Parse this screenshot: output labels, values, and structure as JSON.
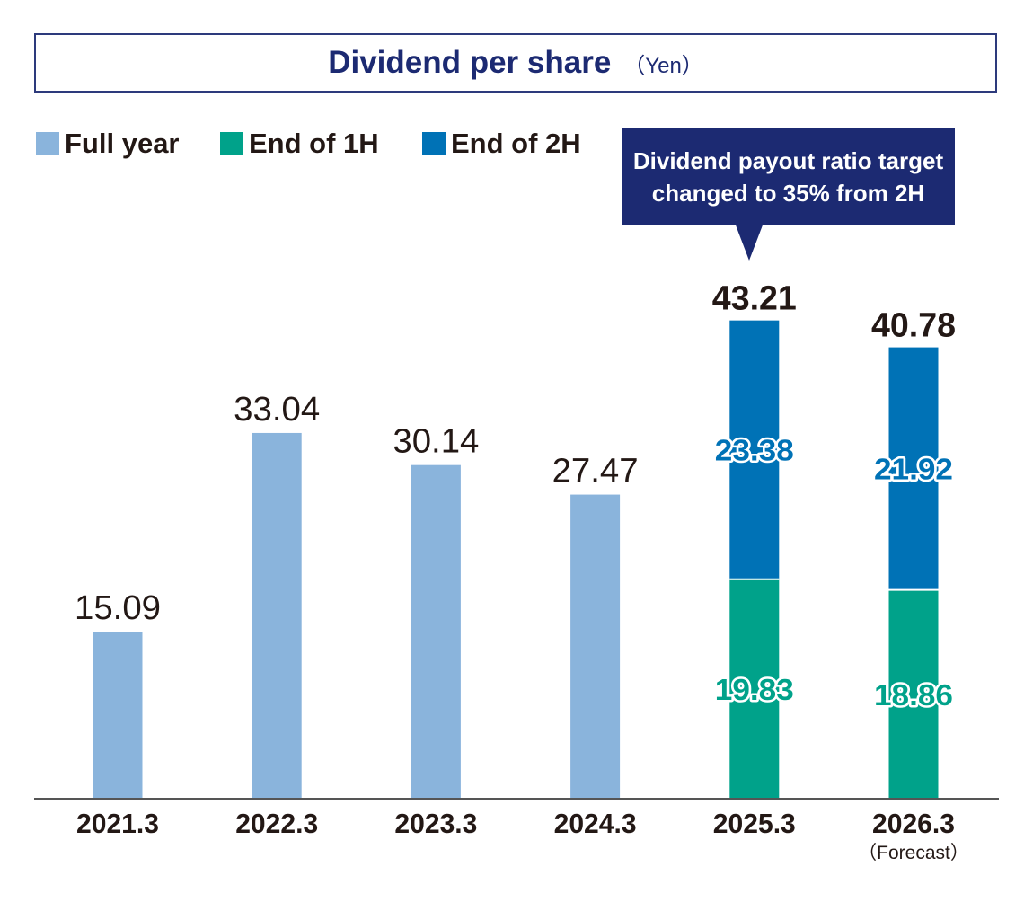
{
  "title": "Dividend per share",
  "unit": "（Yen）",
  "legend": [
    {
      "label": "Full year",
      "color": "#8ab4dc"
    },
    {
      "label": "End of 1H",
      "color": "#00a28a"
    },
    {
      "label": "End of 2H",
      "color": "#0072b6"
    }
  ],
  "callout": {
    "line1": "Dividend payout ratio target",
    "line2": "changed to 35% from 2H"
  },
  "chart_data": {
    "type": "bar",
    "categories": [
      "2021.3",
      "2022.3",
      "2023.3",
      "2024.3",
      "2025.3",
      "2026.3"
    ],
    "category_notes": [
      "",
      "",
      "",
      "",
      "",
      "（Forecast）"
    ],
    "series": [
      {
        "name": "Full year",
        "values": [
          15.09,
          33.04,
          30.14,
          27.47,
          null,
          null
        ]
      },
      {
        "name": "End of 1H",
        "values": [
          null,
          null,
          null,
          null,
          19.83,
          18.86
        ]
      },
      {
        "name": "End of 2H",
        "values": [
          null,
          null,
          null,
          null,
          23.38,
          21.92
        ]
      }
    ],
    "totals": [
      null,
      null,
      null,
      null,
      43.21,
      40.78
    ],
    "ylim": [
      0,
      48
    ],
    "colors": {
      "full_year": "#8ab4dc",
      "first_half": "#00a28a",
      "second_half": "#0072b6"
    }
  }
}
